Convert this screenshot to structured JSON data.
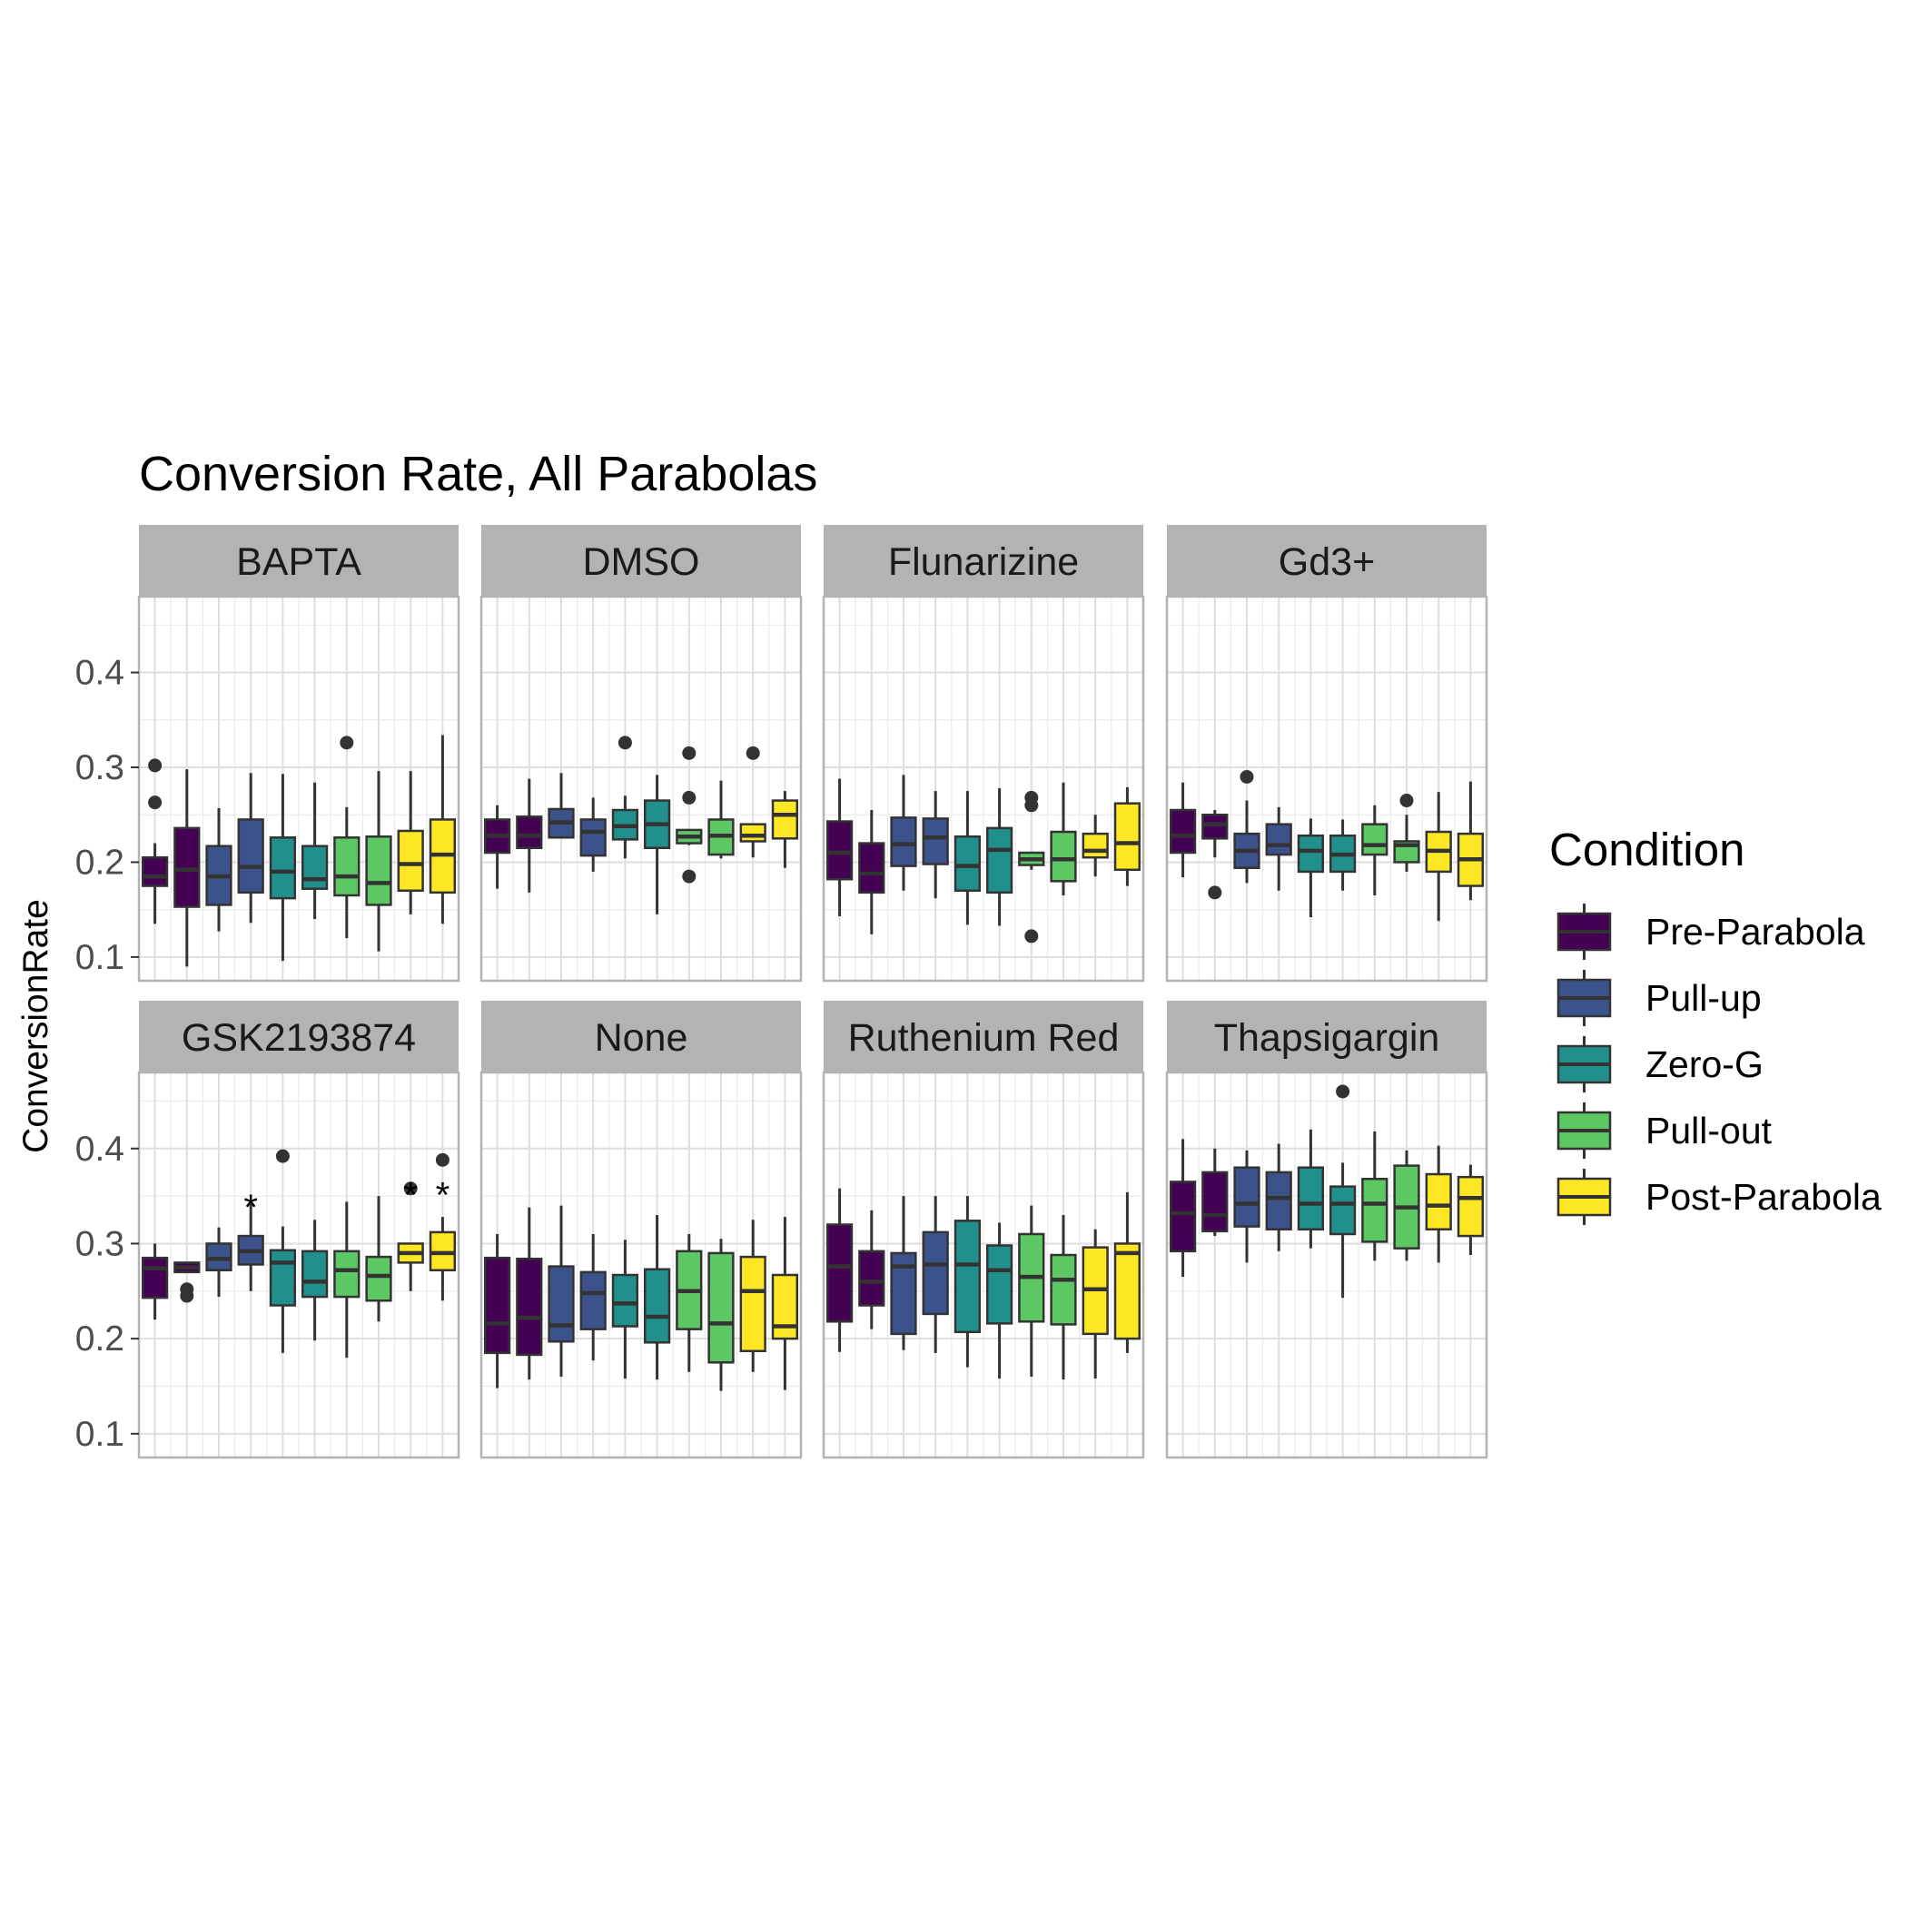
{
  "chart_data": {
    "type": "boxplot",
    "title": "Conversion Rate, All Parabolas",
    "ylabel": "ConversionRate",
    "xlabel": "",
    "ylim": [
      0.075,
      0.48
    ],
    "yticks": [
      0.1,
      0.2,
      0.3,
      0.4
    ],
    "ytick_labels": [
      "0.1",
      "0.2",
      "0.3",
      "0.4"
    ],
    "facet_layout": "2 rows x 4 columns",
    "grid": true,
    "legend": {
      "title": "Condition",
      "position": "right",
      "entries": [
        {
          "name": "Pre-Parabola",
          "color": "#440154"
        },
        {
          "name": "Pull-up",
          "color": "#3B528B"
        },
        {
          "name": "Zero-G",
          "color": "#21908C"
        },
        {
          "name": "Pull-out",
          "color": "#5DC863"
        },
        {
          "name": "Post-Parabola",
          "color": "#FDE725"
        }
      ]
    },
    "box_condition_index": [
      0,
      0,
      1,
      1,
      2,
      2,
      3,
      3,
      4,
      4
    ],
    "panels": [
      {
        "label": "BAPTA",
        "boxes": [
          {
            "min": 0.135,
            "q1": 0.175,
            "median": 0.185,
            "q3": 0.205,
            "max": 0.22,
            "outliers": [
              0.263,
              0.302
            ]
          },
          {
            "min": 0.09,
            "q1": 0.153,
            "median": 0.192,
            "q3": 0.236,
            "max": 0.298,
            "outliers": []
          },
          {
            "min": 0.127,
            "q1": 0.155,
            "median": 0.185,
            "q3": 0.217,
            "max": 0.257,
            "outliers": []
          },
          {
            "min": 0.136,
            "q1": 0.168,
            "median": 0.195,
            "q3": 0.245,
            "max": 0.294,
            "outliers": []
          },
          {
            "min": 0.096,
            "q1": 0.162,
            "median": 0.19,
            "q3": 0.226,
            "max": 0.293,
            "outliers": []
          },
          {
            "min": 0.14,
            "q1": 0.172,
            "median": 0.182,
            "q3": 0.217,
            "max": 0.284,
            "outliers": []
          },
          {
            "min": 0.12,
            "q1": 0.165,
            "median": 0.185,
            "q3": 0.226,
            "max": 0.258,
            "outliers": [
              0.326
            ]
          },
          {
            "min": 0.106,
            "q1": 0.155,
            "median": 0.178,
            "q3": 0.227,
            "max": 0.296,
            "outliers": []
          },
          {
            "min": 0.145,
            "q1": 0.17,
            "median": 0.198,
            "q3": 0.233,
            "max": 0.296,
            "outliers": []
          },
          {
            "min": 0.135,
            "q1": 0.168,
            "median": 0.208,
            "q3": 0.245,
            "max": 0.334,
            "outliers": []
          }
        ],
        "annotations": []
      },
      {
        "label": "DMSO",
        "boxes": [
          {
            "min": 0.172,
            "q1": 0.21,
            "median": 0.228,
            "q3": 0.245,
            "max": 0.26,
            "outliers": []
          },
          {
            "min": 0.168,
            "q1": 0.215,
            "median": 0.228,
            "q3": 0.248,
            "max": 0.288,
            "outliers": []
          },
          {
            "min": 0.226,
            "q1": 0.226,
            "median": 0.242,
            "q3": 0.256,
            "max": 0.294,
            "outliers": []
          },
          {
            "min": 0.19,
            "q1": 0.207,
            "median": 0.232,
            "q3": 0.245,
            "max": 0.268,
            "outliers": []
          },
          {
            "min": 0.204,
            "q1": 0.224,
            "median": 0.238,
            "q3": 0.255,
            "max": 0.27,
            "outliers": [
              0.326
            ]
          },
          {
            "min": 0.145,
            "q1": 0.215,
            "median": 0.24,
            "q3": 0.265,
            "max": 0.292,
            "outliers": []
          },
          {
            "min": 0.218,
            "q1": 0.22,
            "median": 0.227,
            "q3": 0.234,
            "max": 0.234,
            "outliers": [
              0.185,
              0.268,
              0.315
            ]
          },
          {
            "min": 0.204,
            "q1": 0.208,
            "median": 0.228,
            "q3": 0.245,
            "max": 0.286,
            "outliers": []
          },
          {
            "min": 0.205,
            "q1": 0.222,
            "median": 0.228,
            "q3": 0.24,
            "max": 0.24,
            "outliers": [
              0.315
            ]
          },
          {
            "min": 0.194,
            "q1": 0.225,
            "median": 0.25,
            "q3": 0.265,
            "max": 0.275,
            "outliers": []
          }
        ],
        "annotations": []
      },
      {
        "label": "Flunarizine",
        "boxes": [
          {
            "min": 0.143,
            "q1": 0.182,
            "median": 0.21,
            "q3": 0.243,
            "max": 0.288,
            "outliers": []
          },
          {
            "min": 0.124,
            "q1": 0.168,
            "median": 0.188,
            "q3": 0.22,
            "max": 0.255,
            "outliers": []
          },
          {
            "min": 0.17,
            "q1": 0.196,
            "median": 0.219,
            "q3": 0.247,
            "max": 0.292,
            "outliers": []
          },
          {
            "min": 0.162,
            "q1": 0.198,
            "median": 0.226,
            "q3": 0.246,
            "max": 0.275,
            "outliers": []
          },
          {
            "min": 0.134,
            "q1": 0.17,
            "median": 0.196,
            "q3": 0.227,
            "max": 0.275,
            "outliers": []
          },
          {
            "min": 0.133,
            "q1": 0.168,
            "median": 0.213,
            "q3": 0.236,
            "max": 0.278,
            "outliers": []
          },
          {
            "min": 0.192,
            "q1": 0.197,
            "median": 0.203,
            "q3": 0.21,
            "max": 0.21,
            "outliers": [
              0.122,
              0.26,
              0.268
            ]
          },
          {
            "min": 0.165,
            "q1": 0.18,
            "median": 0.203,
            "q3": 0.232,
            "max": 0.284,
            "outliers": []
          },
          {
            "min": 0.185,
            "q1": 0.205,
            "median": 0.212,
            "q3": 0.23,
            "max": 0.25,
            "outliers": []
          },
          {
            "min": 0.175,
            "q1": 0.192,
            "median": 0.22,
            "q3": 0.262,
            "max": 0.279,
            "outliers": []
          }
        ],
        "annotations": []
      },
      {
        "label": "Gd3+",
        "boxes": [
          {
            "min": 0.184,
            "q1": 0.21,
            "median": 0.228,
            "q3": 0.255,
            "max": 0.284,
            "outliers": []
          },
          {
            "min": 0.205,
            "q1": 0.225,
            "median": 0.24,
            "q3": 0.25,
            "max": 0.255,
            "outliers": [
              0.168
            ]
          },
          {
            "min": 0.178,
            "q1": 0.194,
            "median": 0.212,
            "q3": 0.23,
            "max": 0.265,
            "outliers": [
              0.29
            ]
          },
          {
            "min": 0.17,
            "q1": 0.208,
            "median": 0.218,
            "q3": 0.24,
            "max": 0.258,
            "outliers": []
          },
          {
            "min": 0.142,
            "q1": 0.19,
            "median": 0.212,
            "q3": 0.228,
            "max": 0.246,
            "outliers": []
          },
          {
            "min": 0.17,
            "q1": 0.19,
            "median": 0.208,
            "q3": 0.228,
            "max": 0.245,
            "outliers": []
          },
          {
            "min": 0.165,
            "q1": 0.208,
            "median": 0.218,
            "q3": 0.24,
            "max": 0.26,
            "outliers": []
          },
          {
            "min": 0.19,
            "q1": 0.2,
            "median": 0.218,
            "q3": 0.222,
            "max": 0.25,
            "outliers": [
              0.265
            ]
          },
          {
            "min": 0.138,
            "q1": 0.19,
            "median": 0.212,
            "q3": 0.232,
            "max": 0.274,
            "outliers": []
          },
          {
            "min": 0.16,
            "q1": 0.175,
            "median": 0.203,
            "q3": 0.23,
            "max": 0.285,
            "outliers": []
          }
        ],
        "annotations": []
      },
      {
        "label": "GSK2193874",
        "boxes": [
          {
            "min": 0.22,
            "q1": 0.243,
            "median": 0.274,
            "q3": 0.285,
            "max": 0.3,
            "outliers": []
          },
          {
            "min": 0.27,
            "q1": 0.27,
            "median": 0.275,
            "q3": 0.28,
            "max": 0.28,
            "outliers": [
              0.245,
              0.252
            ]
          },
          {
            "min": 0.244,
            "q1": 0.272,
            "median": 0.284,
            "q3": 0.3,
            "max": 0.317,
            "outliers": []
          },
          {
            "min": 0.25,
            "q1": 0.278,
            "median": 0.292,
            "q3": 0.308,
            "max": 0.344,
            "outliers": []
          },
          {
            "min": 0.185,
            "q1": 0.235,
            "median": 0.28,
            "q3": 0.293,
            "max": 0.318,
            "outliers": [
              0.392
            ]
          },
          {
            "min": 0.198,
            "q1": 0.244,
            "median": 0.26,
            "q3": 0.292,
            "max": 0.325,
            "outliers": []
          },
          {
            "min": 0.18,
            "q1": 0.244,
            "median": 0.272,
            "q3": 0.292,
            "max": 0.344,
            "outliers": []
          },
          {
            "min": 0.218,
            "q1": 0.24,
            "median": 0.266,
            "q3": 0.286,
            "max": 0.35,
            "outliers": []
          },
          {
            "min": 0.25,
            "q1": 0.28,
            "median": 0.29,
            "q3": 0.3,
            "max": 0.3,
            "outliers": [
              0.358
            ]
          },
          {
            "min": 0.24,
            "q1": 0.272,
            "median": 0.29,
            "q3": 0.312,
            "max": 0.328,
            "outliers": [
              0.388
            ]
          }
        ],
        "annotations": [
          {
            "box": 3,
            "text": "*",
            "value": 0.35
          },
          {
            "box": 8,
            "text": "*",
            "value": 0.363
          },
          {
            "box": 9,
            "text": "*",
            "value": 0.363
          }
        ]
      },
      {
        "label": "None",
        "boxes": [
          {
            "min": 0.148,
            "q1": 0.185,
            "median": 0.216,
            "q3": 0.285,
            "max": 0.31,
            "outliers": []
          },
          {
            "min": 0.157,
            "q1": 0.183,
            "median": 0.222,
            "q3": 0.284,
            "max": 0.338,
            "outliers": []
          },
          {
            "min": 0.16,
            "q1": 0.197,
            "median": 0.214,
            "q3": 0.276,
            "max": 0.34,
            "outliers": []
          },
          {
            "min": 0.177,
            "q1": 0.21,
            "median": 0.248,
            "q3": 0.27,
            "max": 0.31,
            "outliers": []
          },
          {
            "min": 0.158,
            "q1": 0.213,
            "median": 0.237,
            "q3": 0.267,
            "max": 0.304,
            "outliers": []
          },
          {
            "min": 0.157,
            "q1": 0.196,
            "median": 0.223,
            "q3": 0.273,
            "max": 0.33,
            "outliers": []
          },
          {
            "min": 0.165,
            "q1": 0.21,
            "median": 0.25,
            "q3": 0.292,
            "max": 0.31,
            "outliers": []
          },
          {
            "min": 0.145,
            "q1": 0.175,
            "median": 0.216,
            "q3": 0.29,
            "max": 0.305,
            "outliers": []
          },
          {
            "min": 0.165,
            "q1": 0.187,
            "median": 0.25,
            "q3": 0.286,
            "max": 0.325,
            "outliers": []
          },
          {
            "min": 0.146,
            "q1": 0.2,
            "median": 0.213,
            "q3": 0.267,
            "max": 0.328,
            "outliers": []
          }
        ],
        "annotations": []
      },
      {
        "label": "Ruthenium Red",
        "boxes": [
          {
            "min": 0.186,
            "q1": 0.218,
            "median": 0.276,
            "q3": 0.32,
            "max": 0.358,
            "outliers": []
          },
          {
            "min": 0.21,
            "q1": 0.235,
            "median": 0.26,
            "q3": 0.292,
            "max": 0.335,
            "outliers": []
          },
          {
            "min": 0.188,
            "q1": 0.205,
            "median": 0.276,
            "q3": 0.29,
            "max": 0.35,
            "outliers": []
          },
          {
            "min": 0.185,
            "q1": 0.226,
            "median": 0.278,
            "q3": 0.312,
            "max": 0.35,
            "outliers": []
          },
          {
            "min": 0.17,
            "q1": 0.207,
            "median": 0.278,
            "q3": 0.324,
            "max": 0.35,
            "outliers": []
          },
          {
            "min": 0.158,
            "q1": 0.216,
            "median": 0.272,
            "q3": 0.298,
            "max": 0.322,
            "outliers": []
          },
          {
            "min": 0.16,
            "q1": 0.218,
            "median": 0.265,
            "q3": 0.31,
            "max": 0.34,
            "outliers": []
          },
          {
            "min": 0.157,
            "q1": 0.215,
            "median": 0.262,
            "q3": 0.288,
            "max": 0.33,
            "outliers": []
          },
          {
            "min": 0.158,
            "q1": 0.205,
            "median": 0.252,
            "q3": 0.296,
            "max": 0.315,
            "outliers": []
          },
          {
            "min": 0.185,
            "q1": 0.2,
            "median": 0.29,
            "q3": 0.3,
            "max": 0.354,
            "outliers": []
          }
        ],
        "annotations": []
      },
      {
        "label": "Thapsigargin",
        "boxes": [
          {
            "min": 0.265,
            "q1": 0.292,
            "median": 0.332,
            "q3": 0.365,
            "max": 0.41,
            "outliers": []
          },
          {
            "min": 0.308,
            "q1": 0.313,
            "median": 0.33,
            "q3": 0.375,
            "max": 0.4,
            "outliers": []
          },
          {
            "min": 0.28,
            "q1": 0.318,
            "median": 0.342,
            "q3": 0.38,
            "max": 0.398,
            "outliers": []
          },
          {
            "min": 0.292,
            "q1": 0.315,
            "median": 0.348,
            "q3": 0.375,
            "max": 0.405,
            "outliers": []
          },
          {
            "min": 0.295,
            "q1": 0.315,
            "median": 0.342,
            "q3": 0.38,
            "max": 0.42,
            "outliers": []
          },
          {
            "min": 0.243,
            "q1": 0.31,
            "median": 0.342,
            "q3": 0.36,
            "max": 0.385,
            "outliers": [
              0.46
            ]
          },
          {
            "min": 0.282,
            "q1": 0.302,
            "median": 0.342,
            "q3": 0.368,
            "max": 0.418,
            "outliers": []
          },
          {
            "min": 0.282,
            "q1": 0.295,
            "median": 0.338,
            "q3": 0.382,
            "max": 0.398,
            "outliers": []
          },
          {
            "min": 0.28,
            "q1": 0.315,
            "median": 0.34,
            "q3": 0.373,
            "max": 0.403,
            "outliers": []
          },
          {
            "min": 0.288,
            "q1": 0.308,
            "median": 0.348,
            "q3": 0.37,
            "max": 0.383,
            "outliers": []
          }
        ],
        "annotations": []
      }
    ]
  }
}
